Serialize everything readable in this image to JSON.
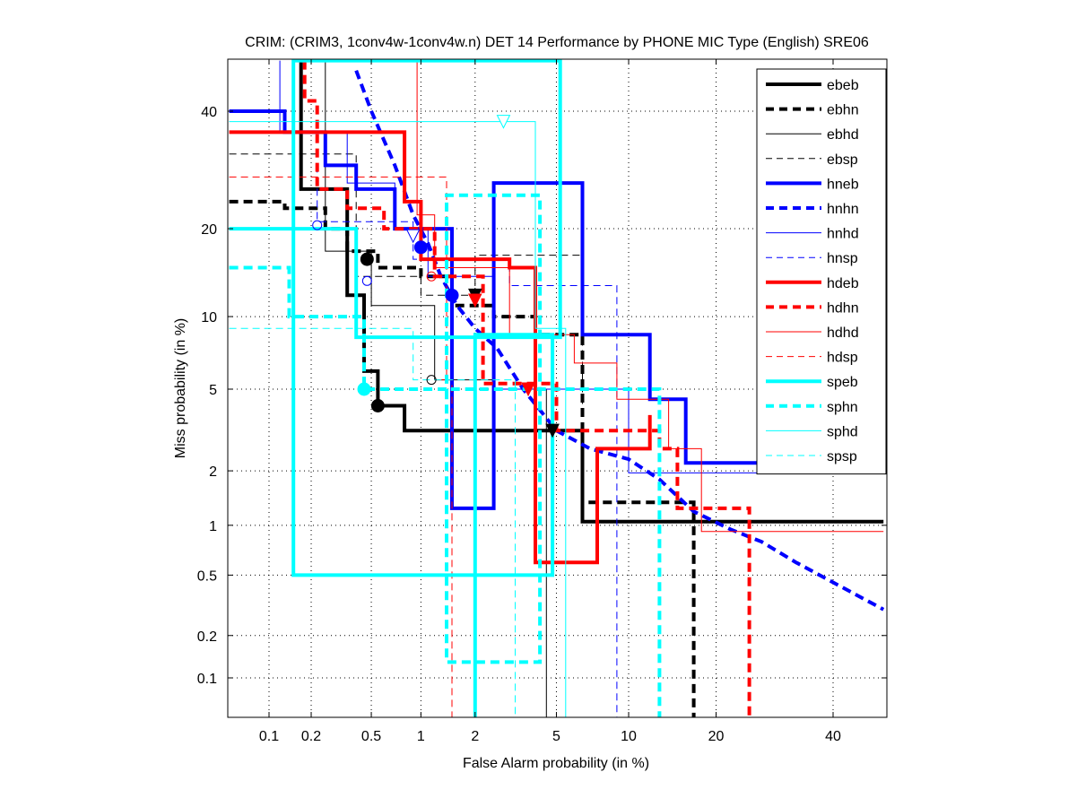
{
  "chart_data": {
    "type": "line",
    "title": "CRIM: (CRIM3, 1conv4w-1conv4w.n) DET 14 Performance by PHONE MIC Type (English) SRE06",
    "xlabel": "False Alarm probability (in %)",
    "ylabel": "Miss probability (in %)",
    "xscale": "normal-deviate",
    "yscale": "normal-deviate",
    "xlim": [
      0.05,
      50
    ],
    "ylim": [
      0.05,
      50
    ],
    "xticks": [
      0.1,
      0.2,
      0.5,
      1,
      2,
      5,
      10,
      20,
      40
    ],
    "xtick_labels": [
      "0.1",
      "0.2",
      "0.5",
      "1",
      "2",
      "5",
      "10",
      "20",
      "40"
    ],
    "yticks": [
      0.1,
      0.2,
      0.5,
      1,
      2,
      5,
      10,
      20,
      40
    ],
    "ytick_labels": [
      "0.1",
      "0.2",
      "0.5",
      "1",
      "2",
      "5",
      "10",
      "20",
      "40"
    ],
    "grid": true,
    "legend_position": "top-right",
    "series": [
      {
        "name": "ebeb",
        "color": "#000000",
        "style": "solid-thick",
        "x": [
          0.17,
          0.17,
          0.35,
          0.35,
          0.45,
          0.45,
          0.55,
          0.55,
          0.8,
          0.8,
          4.8,
          4.8,
          6.5,
          6.5,
          50
        ],
        "y": [
          50,
          26,
          26,
          12,
          12,
          6,
          6,
          4.2,
          4.2,
          3.2,
          3.2,
          3.2,
          3.2,
          1.05,
          1.05
        ]
      },
      {
        "name": "ebhn",
        "color": "#000000",
        "style": "dash-thick",
        "x": [
          0.05,
          0.13,
          0.13,
          0.25,
          0.25,
          0.35,
          0.35,
          0.55,
          0.55,
          1.0,
          1.0,
          1.5,
          1.5,
          2.5,
          2.5,
          4.0,
          4.0,
          6.5,
          6.5,
          17,
          17
        ],
        "y": [
          24,
          24,
          23,
          23,
          20,
          20,
          17,
          17,
          15,
          15,
          14,
          14,
          11,
          11,
          10,
          10,
          8.5,
          8.5,
          1.35,
          1.35,
          0.05
        ]
      },
      {
        "name": "ebhd",
        "color": "#000000",
        "style": "solid-thin",
        "x": [
          0.25,
          0.25,
          0.5,
          0.5,
          1.2,
          1.2,
          2.5,
          2.5,
          4.5,
          4.5
        ],
        "y": [
          50,
          17,
          17,
          11,
          11,
          5.5,
          5.5,
          5.0,
          5.0,
          0.05
        ]
      },
      {
        "name": "ebsp",
        "color": "#000000",
        "style": "dash-thin",
        "x": [
          0.05,
          0.4,
          0.4,
          1.0,
          1.0,
          2.0,
          2.0,
          6.5,
          6.5
        ],
        "y": [
          32,
          32,
          14,
          14,
          12,
          12,
          16.5,
          16.5,
          4.0
        ]
      },
      {
        "name": "hneb",
        "color": "#0000ff",
        "style": "solid-thick",
        "x": [
          0.05,
          0.13,
          0.13,
          0.25,
          0.25,
          0.4,
          0.4,
          0.7,
          0.7,
          1.5,
          1.5,
          2.5,
          2.5,
          6.5,
          6.5,
          12,
          12,
          16,
          16,
          50
        ],
        "y": [
          40,
          40,
          36,
          36,
          30,
          30,
          26,
          26,
          20,
          20,
          1.25,
          1.25,
          27,
          27,
          8.5,
          8.5,
          4.5,
          4.5,
          2.2,
          2.2
        ]
      },
      {
        "name": "hnhn",
        "color": "#0000ff",
        "style": "dash-thick",
        "x": [
          0.4,
          0.5,
          0.7,
          0.9,
          1.1,
          1.3,
          1.6,
          2.0,
          2.6,
          3.5,
          5.0,
          7.0,
          10,
          13,
          17,
          22,
          27,
          33,
          40,
          50
        ],
        "y": [
          48,
          40,
          30,
          22,
          18,
          14,
          11,
          9,
          7.5,
          5,
          3.2,
          2.6,
          2.3,
          1.8,
          1.2,
          0.95,
          0.8,
          0.6,
          0.45,
          0.3
        ]
      },
      {
        "name": "hnhd",
        "color": "#0000ff",
        "style": "solid-thin",
        "x": [
          0.12,
          0.12,
          0.35,
          0.35,
          0.7,
          0.7,
          1.1,
          1.1,
          2.5,
          2.5,
          10,
          10,
          50
        ],
        "y": [
          50,
          36,
          36,
          27,
          27,
          20,
          20,
          14,
          14,
          5.0,
          5.0,
          1.95,
          1.95
        ]
      },
      {
        "name": "hnsp",
        "color": "#0000ff",
        "style": "dash-thin",
        "x": [
          0.22,
          0.22,
          0.9,
          0.9,
          3.0,
          3.0,
          9.0,
          9.0
        ],
        "y": [
          30,
          21,
          21,
          16,
          16,
          13,
          13,
          0.05
        ]
      },
      {
        "name": "hdeb",
        "color": "#ff0000",
        "style": "solid-thick",
        "x": [
          0.05,
          0.8,
          0.8,
          1.0,
          1.0,
          3.0,
          3.0,
          4.0,
          4.0,
          7.5,
          7.5,
          12,
          12
        ],
        "y": [
          36,
          36,
          24,
          24,
          16,
          16,
          15,
          15,
          0.6,
          0.6,
          2.6,
          2.6,
          3.8
        ]
      },
      {
        "name": "hdhn",
        "color": "#ff0000",
        "style": "dash-thick",
        "x": [
          0.18,
          0.18,
          0.22,
          0.22,
          0.35,
          0.35,
          0.6,
          0.6,
          1.2,
          1.2,
          2.2,
          2.2,
          5.0,
          5.0,
          13,
          13,
          15,
          15,
          25,
          25
        ],
        "y": [
          50,
          42,
          42,
          26,
          26,
          23,
          23,
          20,
          20,
          14,
          14,
          5.3,
          5.3,
          3.2,
          3.2,
          2.6,
          2.6,
          1.25,
          1.25,
          0.05
        ]
      },
      {
        "name": "hdhd",
        "color": "#ff0000",
        "style": "solid-thin",
        "x": [
          0.95,
          0.95,
          1.2,
          1.2,
          3.0,
          3.0,
          6.0,
          6.0,
          9.0,
          9.0,
          14,
          14,
          18,
          18,
          50
        ],
        "y": [
          50,
          22,
          22,
          15,
          15,
          8.5,
          8.5,
          6.5,
          6.5,
          4.5,
          4.5,
          2.6,
          2.6,
          0.92,
          0.92
        ]
      },
      {
        "name": "hdsp",
        "color": "#ff0000",
        "style": "dash-thin",
        "x": [
          0.05,
          1.4,
          1.4,
          1.2,
          1.2,
          1.5,
          1.5
        ],
        "y": [
          28,
          28,
          5.5,
          5.5,
          5.5,
          5.5,
          0.05
        ]
      },
      {
        "name": "speb",
        "color": "#00ffff",
        "style": "solid-thick",
        "x": [
          0.05,
          0.4,
          0.4,
          5.2,
          5.2,
          0.15,
          0.15,
          4.8,
          4.8,
          2.0,
          2.0
        ],
        "y": [
          20,
          20,
          8.3,
          8.3,
          50,
          50,
          0.5,
          0.5,
          8.5,
          8.5,
          0.05
        ]
      },
      {
        "name": "sphn",
        "color": "#00ffff",
        "style": "dash-thick",
        "x": [
          0.05,
          0.14,
          0.14,
          0.45,
          0.45,
          1.4,
          1.4,
          4.2,
          4.2,
          1.4,
          1.4,
          4.0,
          4.0,
          13,
          13
        ],
        "y": [
          15,
          15,
          10,
          10,
          5,
          5,
          25,
          25,
          0.13,
          0.13,
          5,
          5,
          5,
          5,
          0.05
        ]
      },
      {
        "name": "sphd",
        "color": "#00ffff",
        "style": "solid-thin",
        "x": [
          0.05,
          4.0,
          4.0,
          5.5,
          5.5
        ],
        "y": [
          38,
          38,
          9.0,
          9.0,
          0.05
        ]
      },
      {
        "name": "spsp",
        "color": "#00ffff",
        "style": "dash-thin",
        "x": [
          0.05,
          0.9,
          0.9,
          3.2,
          3.2
        ],
        "y": [
          9.0,
          9.0,
          5.5,
          5.5,
          0.05
        ]
      }
    ],
    "markers": [
      {
        "series": "ebeb",
        "x": 0.55,
        "y": 4.2,
        "shape": "circle-filled",
        "color": "#000000"
      },
      {
        "series": "ebhn",
        "x": 0.47,
        "y": 16,
        "shape": "circle-filled",
        "color": "#000000"
      },
      {
        "series": "ebeb",
        "x": 2.0,
        "y": 12,
        "shape": "triangle-filled",
        "color": "#000000"
      },
      {
        "series": "ebhn",
        "x": 4.8,
        "y": 3.2,
        "shape": "triangle-filled",
        "color": "#000000"
      },
      {
        "series": "hnhn",
        "x": 1.0,
        "y": 17.5,
        "shape": "circle-filled",
        "color": "#0000ff"
      },
      {
        "series": "hneb",
        "x": 1.5,
        "y": 12,
        "shape": "circle-filled",
        "color": "#0000ff"
      },
      {
        "series": "hnhd",
        "x": 0.47,
        "y": 13.5,
        "shape": "circle-open",
        "color": "#0000ff"
      },
      {
        "series": "hnsp",
        "x": 0.22,
        "y": 20.5,
        "shape": "circle-open",
        "color": "#0000ff"
      },
      {
        "series": "hdeb",
        "x": 2.0,
        "y": 11.5,
        "shape": "triangle-filled",
        "color": "#ff0000"
      },
      {
        "series": "hdhn",
        "x": 3.7,
        "y": 5.0,
        "shape": "triangle-filled",
        "color": "#ff0000"
      },
      {
        "series": "hdhd",
        "x": 1.15,
        "y": 14,
        "shape": "circle-open",
        "color": "#ff0000"
      },
      {
        "series": "speb",
        "x": 0.45,
        "y": 5.0,
        "shape": "circle-filled",
        "color": "#00ffff"
      },
      {
        "series": "sphd",
        "x": 2.8,
        "y": 38,
        "shape": "triangle-open",
        "color": "#00ffff"
      },
      {
        "series": "ebhd",
        "x": 1.15,
        "y": 5.5,
        "shape": "circle-open",
        "color": "#000000"
      },
      {
        "series": "hnsp",
        "x": 0.9,
        "y": 19,
        "shape": "triangle-open",
        "color": "#0000ff"
      }
    ]
  }
}
